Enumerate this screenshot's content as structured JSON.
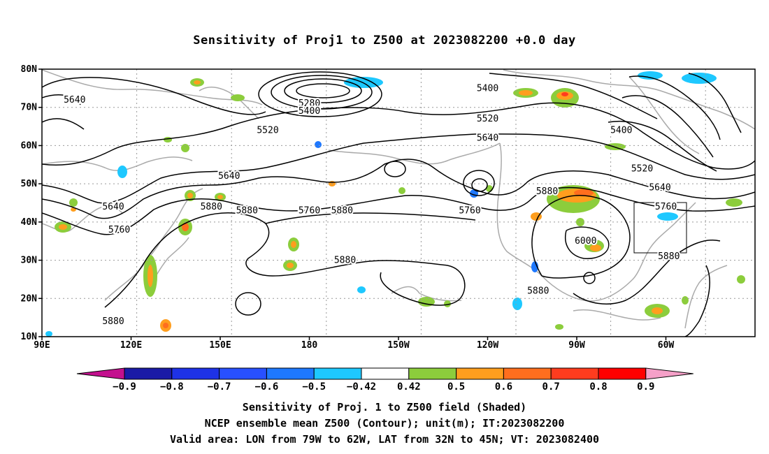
{
  "title": "Sensitivity of Proj1 to Z500 at 2023082200 +0.0 day",
  "map": {
    "lat_ticks": [
      "80N",
      "70N",
      "60N",
      "50N",
      "40N",
      "30N",
      "20N",
      "10N"
    ],
    "lon_ticks": [
      "90E",
      "120E",
      "150E",
      "180",
      "150W",
      "120W",
      "90W",
      "60W"
    ],
    "contour_labels": [
      {
        "text": "5640",
        "lon": 101,
        "lat": 72
      },
      {
        "text": "5280",
        "lon": 180,
        "lat": 71
      },
      {
        "text": "5400",
        "lon": 180,
        "lat": 69
      },
      {
        "text": "5520",
        "lon": 166,
        "lat": 64
      },
      {
        "text": "5640",
        "lon": 153,
        "lat": 52
      },
      {
        "text": "5640",
        "lon": 114,
        "lat": 44
      },
      {
        "text": "5760",
        "lon": 116,
        "lat": 38
      },
      {
        "text": "5880",
        "lon": 147,
        "lat": 44
      },
      {
        "text": "5760",
        "lon": 180,
        "lat": 43
      },
      {
        "text": "5880",
        "lon": 159,
        "lat": 43
      },
      {
        "text": "5880",
        "lon": 191,
        "lat": 43
      },
      {
        "text": "5880",
        "lon": 192,
        "lat": 30
      },
      {
        "text": "5400",
        "lon": 240,
        "lat": 75
      },
      {
        "text": "5520",
        "lon": 240,
        "lat": 67
      },
      {
        "text": "5640",
        "lon": 240,
        "lat": 62
      },
      {
        "text": "5760",
        "lon": 234,
        "lat": 43
      },
      {
        "text": "5880",
        "lon": 260,
        "lat": 48
      },
      {
        "text": "6000",
        "lon": 273,
        "lat": 35
      },
      {
        "text": "5880",
        "lon": 257,
        "lat": 22
      },
      {
        "text": "5400",
        "lon": 285,
        "lat": 64
      },
      {
        "text": "5520",
        "lon": 292,
        "lat": 54
      },
      {
        "text": "5640",
        "lon": 298,
        "lat": 49
      },
      {
        "text": "5760",
        "lon": 300,
        "lat": 44
      },
      {
        "text": "5880",
        "lon": 301,
        "lat": 31
      },
      {
        "text": "5880",
        "lon": 114,
        "lat": 14
      }
    ]
  },
  "colorbar": {
    "labels": [
      "-0.9",
      "-0.8",
      "-0.7",
      "-0.6",
      "-0.5",
      "-0.42",
      "0.42",
      "0.5",
      "0.6",
      "0.7",
      "0.8",
      "0.9"
    ],
    "colors": [
      "#1a1aa6",
      "#1e32e6",
      "#2850ff",
      "#1e78ff",
      "#1ec8ff",
      "#ffffff",
      "#8ccd3c",
      "#ff9e1e",
      "#ff6e1e",
      "#ff3c1e",
      "#ff0000"
    ],
    "low_color": "#c3108e",
    "high_color": "#f5a0c8"
  },
  "footer": {
    "line1": "Sensitivity of Proj. 1 to Z500 field (Shaded)",
    "line2": "NCEP ensemble mean Z500 (Contour); unit(m); IT:2023082200",
    "line3": "Valid area: LON from 79W to 62W, LAT from 32N to 45N; VT: 2023082400"
  },
  "valid_area": {
    "lon_min": -79,
    "lon_max": -62,
    "lat_min": 32,
    "lat_max": 45
  },
  "colors": {
    "contour": "#000000",
    "coast": "#aaaaaa",
    "grid": "#999999"
  }
}
